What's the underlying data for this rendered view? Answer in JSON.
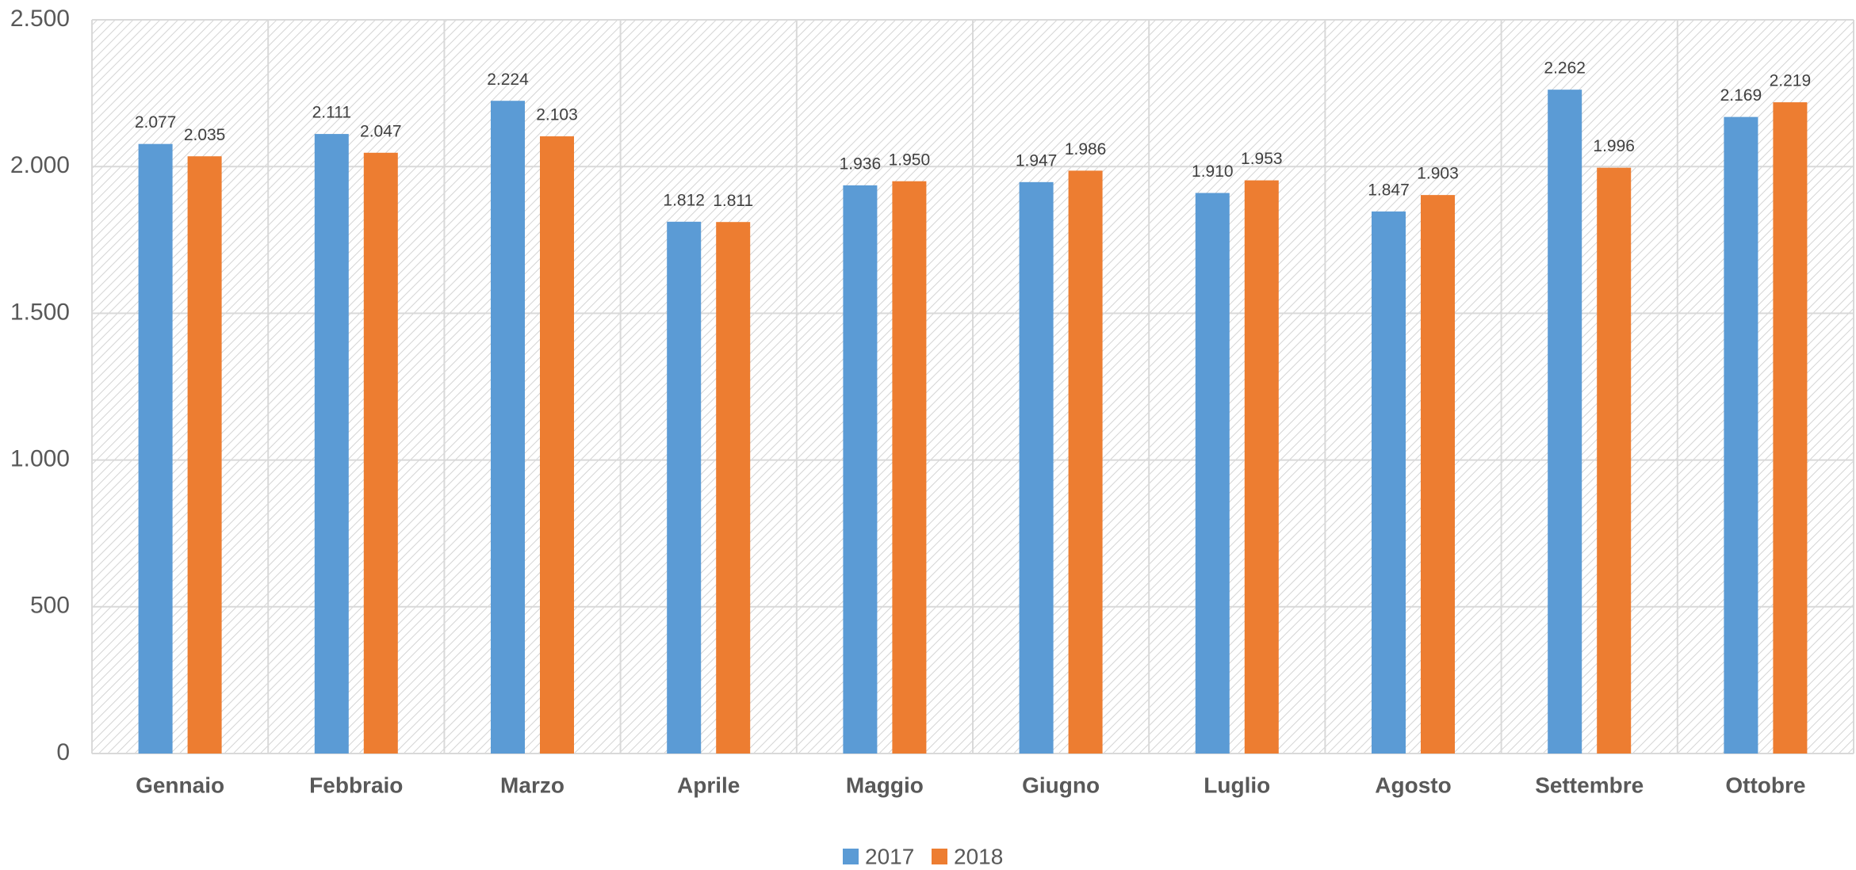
{
  "chart_data": {
    "type": "bar",
    "categories": [
      "Gennaio",
      "Febbraio",
      "Marzo",
      "Aprile",
      "Maggio",
      "Giugno",
      "Luglio",
      "Agosto",
      "Settembre",
      "Ottobre"
    ],
    "series": [
      {
        "name": "2017",
        "color": "#5b9bd5",
        "values": [
          2077,
          2111,
          2224,
          1812,
          1936,
          1947,
          1910,
          1847,
          2262,
          2169
        ],
        "value_labels": [
          "2.077",
          "2.111",
          "2.224",
          "1.812",
          "1.936",
          "1.947",
          "1.910",
          "1.847",
          "2.262",
          "2.169"
        ]
      },
      {
        "name": "2018",
        "color": "#ed7d31",
        "values": [
          2035,
          2047,
          2103,
          1811,
          1950,
          1986,
          1953,
          1903,
          1996,
          2219
        ],
        "value_labels": [
          "2.035",
          "2.047",
          "2.103",
          "1.811",
          "1.950",
          "1.986",
          "1.953",
          "1.903",
          "1.996",
          "2.219"
        ]
      }
    ],
    "ylim": [
      0,
      2500
    ],
    "yticks": [
      {
        "value": 0,
        "label": "0"
      },
      {
        "value": 500,
        "label": "500"
      },
      {
        "value": 1000,
        "label": "1.000"
      },
      {
        "value": 1500,
        "label": "1.500"
      },
      {
        "value": 2000,
        "label": "2.000"
      },
      {
        "value": 2500,
        "label": "2.500"
      }
    ],
    "grid": true,
    "legend": "bottom"
  }
}
